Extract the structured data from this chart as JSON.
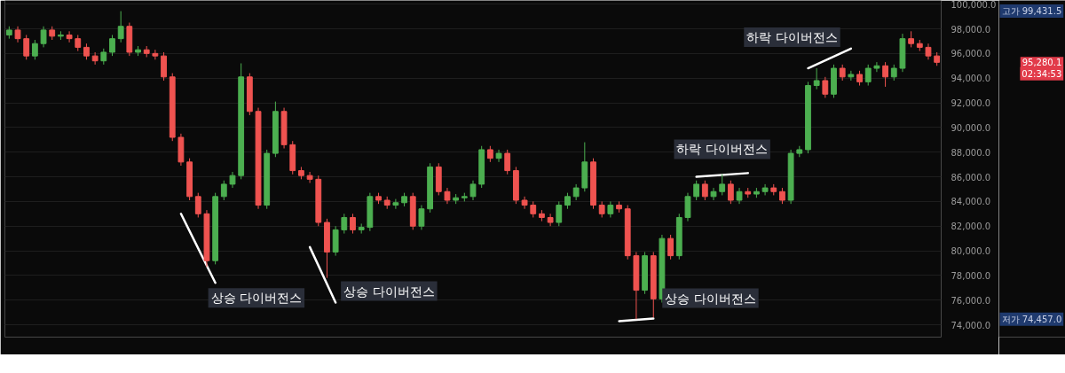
{
  "chart_data": {
    "type": "candlestick",
    "categories": [
      null,
      null,
      null,
      null,
      null,
      null,
      null,
      null,
      null,
      null,
      null,
      null,
      null,
      null,
      null,
      null,
      null,
      null,
      null,
      null,
      null,
      null,
      null,
      null,
      null,
      null,
      null,
      null,
      null,
      null,
      null,
      null,
      null,
      null,
      null,
      null,
      null,
      null,
      null,
      null,
      null,
      null,
      null,
      null,
      null,
      null,
      null,
      null,
      null,
      null,
      null,
      null,
      null,
      null,
      null,
      null,
      null,
      null,
      null,
      null,
      null,
      null,
      null,
      null,
      null,
      null,
      null,
      null,
      null,
      null,
      null,
      null,
      null,
      null,
      null,
      null,
      null,
      null,
      null,
      null,
      null,
      null,
      null,
      null,
      null,
      null,
      null,
      null,
      null,
      null,
      null,
      null,
      null,
      null,
      null,
      null,
      null,
      null,
      null,
      null,
      null,
      null,
      null,
      null,
      null,
      null,
      null,
      null,
      null
    ],
    "ohlc": [
      [
        97500,
        98200,
        97200,
        97900
      ],
      [
        97900,
        98200,
        96900,
        97200
      ],
      [
        97200,
        97500,
        95500,
        95800
      ],
      [
        95800,
        97100,
        95500,
        96800
      ],
      [
        96800,
        98200,
        96500,
        97900
      ],
      [
        97900,
        98200,
        97100,
        97400
      ],
      [
        97400,
        97800,
        97100,
        97500
      ],
      [
        97500,
        97800,
        96900,
        97200
      ],
      [
        97200,
        97500,
        96200,
        96500
      ],
      [
        96500,
        96800,
        95500,
        95800
      ],
      [
        95800,
        96100,
        95100,
        95400
      ],
      [
        95400,
        96400,
        95100,
        96100
      ],
      [
        96100,
        97500,
        95800,
        97200
      ],
      [
        97200,
        99431.5,
        96900,
        98200
      ],
      [
        98200,
        98500,
        95800,
        96100
      ],
      [
        96100,
        96600,
        95800,
        96300
      ],
      [
        96300,
        96600,
        95700,
        96000
      ],
      [
        96000,
        96300,
        95500,
        95800
      ],
      [
        95800,
        96100,
        93800,
        94100
      ],
      [
        94100,
        94400,
        88900,
        89200
      ],
      [
        89200,
        89500,
        86900,
        87200
      ],
      [
        87200,
        87500,
        84100,
        84400
      ],
      [
        84400,
        84700,
        82700,
        83000
      ],
      [
        83000,
        83300,
        78700,
        79200
      ],
      [
        79200,
        84700,
        78900,
        84400
      ],
      [
        84400,
        85700,
        84100,
        85400
      ],
      [
        85400,
        86400,
        85100,
        86100
      ],
      [
        86100,
        95200,
        85800,
        94100
      ],
      [
        94100,
        94400,
        91000,
        91300
      ],
      [
        91300,
        91600,
        83400,
        83700
      ],
      [
        83700,
        88200,
        83400,
        87900
      ],
      [
        87900,
        92100,
        87600,
        91300
      ],
      [
        91300,
        91600,
        88300,
        88600
      ],
      [
        88600,
        88900,
        86200,
        86500
      ],
      [
        86500,
        86800,
        85800,
        86100
      ],
      [
        86100,
        86400,
        85500,
        85800
      ],
      [
        85800,
        86100,
        82000,
        82300
      ],
      [
        82300,
        82600,
        77800,
        79900
      ],
      [
        79900,
        82000,
        79600,
        81700
      ],
      [
        81700,
        83000,
        81400,
        82700
      ],
      [
        82700,
        83000,
        81400,
        81700
      ],
      [
        81700,
        82200,
        81400,
        81900
      ],
      [
        81900,
        84700,
        81600,
        84400
      ],
      [
        84400,
        84700,
        83800,
        84100
      ],
      [
        84100,
        84400,
        83400,
        83700
      ],
      [
        83700,
        84200,
        83400,
        83900
      ],
      [
        83900,
        84700,
        83600,
        84400
      ],
      [
        84400,
        84700,
        81700,
        82000
      ],
      [
        82000,
        83700,
        81700,
        83400
      ],
      [
        83400,
        87100,
        83100,
        86800
      ],
      [
        86800,
        87100,
        84500,
        84800
      ],
      [
        84800,
        85100,
        83800,
        84100
      ],
      [
        84100,
        84600,
        83800,
        84300
      ],
      [
        84300,
        84700,
        84000,
        84400
      ],
      [
        84400,
        85700,
        84100,
        85400
      ],
      [
        85400,
        88500,
        85100,
        88200
      ],
      [
        88200,
        88500,
        87200,
        87500
      ],
      [
        87500,
        88200,
        87200,
        87900
      ],
      [
        87900,
        88200,
        86200,
        86500
      ],
      [
        86500,
        86800,
        83800,
        84100
      ],
      [
        84100,
        84400,
        83400,
        83700
      ],
      [
        83700,
        84000,
        82700,
        83000
      ],
      [
        83000,
        83300,
        82400,
        82700
      ],
      [
        82700,
        83000,
        82000,
        82300
      ],
      [
        82300,
        84000,
        82000,
        83700
      ],
      [
        83700,
        84700,
        83400,
        84400
      ],
      [
        84400,
        85400,
        84100,
        85100
      ],
      [
        85100,
        88800,
        84800,
        87200
      ],
      [
        87200,
        87500,
        83400,
        83700
      ],
      [
        83700,
        84000,
        82700,
        83000
      ],
      [
        83000,
        84000,
        82700,
        83700
      ],
      [
        83700,
        84000,
        83100,
        83400
      ],
      [
        83400,
        83700,
        79300,
        79600
      ],
      [
        79600,
        79900,
        74457,
        76800
      ],
      [
        76800,
        79900,
        76500,
        79600
      ],
      [
        79600,
        79900,
        74600,
        76100
      ],
      [
        76100,
        81300,
        75800,
        81000
      ],
      [
        81000,
        81300,
        79300,
        79600
      ],
      [
        79600,
        83000,
        79300,
        82700
      ],
      [
        82700,
        84700,
        82400,
        84400
      ],
      [
        84400,
        85700,
        84100,
        85400
      ],
      [
        85400,
        85700,
        84100,
        84400
      ],
      [
        84400,
        85100,
        84100,
        84800
      ],
      [
        84800,
        86200,
        84500,
        85400
      ],
      [
        85400,
        85700,
        83800,
        84100
      ],
      [
        84100,
        85100,
        83800,
        84800
      ],
      [
        84800,
        85100,
        84300,
        84600
      ],
      [
        84600,
        85100,
        84300,
        84800
      ],
      [
        84800,
        85400,
        84500,
        85100
      ],
      [
        85100,
        85400,
        84500,
        84800
      ],
      [
        84800,
        85100,
        83800,
        84100
      ],
      [
        84100,
        88200,
        83800,
        87900
      ],
      [
        87900,
        88500,
        87600,
        88200
      ],
      [
        88200,
        93700,
        87900,
        93400
      ],
      [
        93400,
        94800,
        93100,
        93800
      ],
      [
        93800,
        94100,
        92400,
        92700
      ],
      [
        92700,
        95100,
        92400,
        94800
      ],
      [
        94800,
        95100,
        93800,
        94100
      ],
      [
        94100,
        94600,
        93800,
        94300
      ],
      [
        94300,
        94600,
        93400,
        93700
      ],
      [
        93700,
        95100,
        93400,
        94800
      ],
      [
        94800,
        95300,
        94500,
        95000
      ],
      [
        95000,
        95300,
        93300,
        94100
      ],
      [
        94100,
        95100,
        93800,
        94800
      ],
      [
        94800,
        97600,
        94500,
        97200
      ],
      [
        97200,
        97800,
        96500,
        96800
      ],
      [
        96800,
        97100,
        96200,
        96500
      ],
      [
        96500,
        96800,
        95500,
        95800
      ],
      [
        95800,
        96100,
        95000,
        95280.1
      ]
    ],
    "colors": [
      "#4caf50",
      "#ef5350",
      "#ef5350",
      "#4caf50",
      "#4caf50",
      "#ef5350",
      "#4caf50",
      "#ef5350",
      "#ef5350",
      "#ef5350",
      "#ef5350",
      "#4caf50",
      "#4caf50",
      "#4caf50",
      "#ef5350",
      "#4caf50",
      "#ef5350",
      "#ef5350",
      "#ef5350",
      "#ef5350",
      "#ef5350",
      "#ef5350",
      "#ef5350",
      "#ef5350",
      "#4caf50",
      "#4caf50",
      "#4caf50",
      "#4caf50",
      "#ef5350",
      "#ef5350",
      "#4caf50",
      "#4caf50",
      "#ef5350",
      "#ef5350",
      "#ef5350",
      "#ef5350",
      "#ef5350",
      "#ef5350",
      "#4caf50",
      "#4caf50",
      "#ef5350",
      "#4caf50",
      "#4caf50",
      "#ef5350",
      "#ef5350",
      "#4caf50",
      "#4caf50",
      "#ef5350",
      "#4caf50",
      "#4caf50",
      "#ef5350",
      "#ef5350",
      "#4caf50",
      "#4caf50",
      "#4caf50",
      "#4caf50",
      "#ef5350",
      "#4caf50",
      "#ef5350",
      "#ef5350",
      "#ef5350",
      "#ef5350",
      "#ef5350",
      "#ef5350",
      "#4caf50",
      "#4caf50",
      "#4caf50",
      "#4caf50",
      "#ef5350",
      "#ef5350",
      "#4caf50",
      "#ef5350",
      "#ef5350",
      "#ef5350",
      "#4caf50",
      "#ef5350",
      "#4caf50",
      "#ef5350",
      "#4caf50",
      "#4caf50",
      "#4caf50",
      "#ef5350",
      "#4caf50",
      "#4caf50",
      "#ef5350",
      "#4caf50",
      "#ef5350",
      "#4caf50",
      "#4caf50",
      "#ef5350",
      "#ef5350",
      "#4caf50",
      "#4caf50",
      "#4caf50",
      "#4caf50",
      "#ef5350",
      "#4caf50",
      "#ef5350",
      "#4caf50",
      "#ef5350",
      "#4caf50",
      "#4caf50",
      "#ef5350",
      "#4caf50",
      "#4caf50",
      "#ef5350",
      "#ef5350",
      "#ef5350",
      "#ef5350"
    ],
    "series": [
      {
        "type": "line",
        "name": "상승 다이버전스",
        "color": "#ffffff",
        "values": [
          null,
          null,
          null,
          null,
          null,
          null,
          null,
          null,
          null,
          null,
          null,
          null,
          null,
          null,
          null,
          null,
          null,
          null,
          null,
          null,
          83000,
          null,
          null,
          null,
          77400,
          null,
          null,
          null,
          null,
          null,
          null,
          null,
          null,
          null,
          null,
          null,
          null,
          null,
          null,
          null,
          null,
          null,
          null,
          null,
          null,
          null,
          null,
          null,
          null,
          null,
          null,
          null,
          null,
          null,
          null,
          null,
          null,
          null,
          null,
          null,
          null,
          null,
          null,
          null,
          null,
          null,
          null,
          null,
          null,
          null,
          null,
          null,
          null,
          null,
          null,
          null,
          null,
          null,
          null,
          null,
          null,
          null,
          null,
          null,
          null,
          null,
          null,
          null,
          null,
          null,
          null,
          null,
          null,
          null,
          null,
          null,
          null,
          null,
          null,
          null,
          null,
          null,
          null,
          null,
          null,
          null,
          null,
          null,
          null
        ]
      },
      {
        "type": "line",
        "name": "상승 다이버전스",
        "color": "#ffffff",
        "values": [
          null,
          null,
          null,
          null,
          null,
          null,
          null,
          null,
          null,
          null,
          null,
          null,
          null,
          null,
          null,
          null,
          null,
          null,
          null,
          null,
          null,
          null,
          null,
          null,
          null,
          null,
          null,
          null,
          null,
          null,
          null,
          null,
          null,
          null,
          null,
          80300,
          null,
          null,
          75800,
          null,
          null,
          null,
          null,
          null,
          null,
          null,
          null,
          null,
          null,
          null,
          null,
          null,
          null,
          null,
          null,
          null,
          null,
          null,
          null,
          null,
          null,
          null,
          null,
          null,
          null,
          null,
          null,
          null,
          null,
          null,
          null,
          null,
          null,
          null,
          null,
          null,
          null,
          null,
          null,
          null,
          null,
          null,
          null,
          null,
          null,
          null,
          null,
          null,
          null,
          null,
          null,
          null,
          null,
          null,
          null,
          null,
          null,
          null,
          null,
          null,
          null,
          null,
          null,
          null,
          null,
          null,
          null,
          null,
          null
        ]
      },
      {
        "type": "line",
        "name": "상승 다이버전스",
        "color": "#ffffff",
        "values": [
          null,
          null,
          null,
          null,
          null,
          null,
          null,
          null,
          null,
          null,
          null,
          null,
          null,
          null,
          null,
          null,
          null,
          null,
          null,
          null,
          null,
          null,
          null,
          null,
          null,
          null,
          null,
          null,
          null,
          null,
          null,
          null,
          null,
          null,
          null,
          null,
          null,
          null,
          null,
          null,
          null,
          null,
          null,
          null,
          null,
          null,
          null,
          null,
          null,
          null,
          null,
          null,
          null,
          null,
          null,
          null,
          null,
          null,
          null,
          null,
          null,
          null,
          null,
          null,
          null,
          null,
          null,
          null,
          null,
          null,
          null,
          74300,
          null,
          null,
          null,
          74500,
          null,
          null,
          null,
          null,
          null,
          null,
          null,
          null,
          null,
          null,
          null,
          null,
          null,
          null,
          null,
          null,
          null,
          null,
          null,
          null,
          null,
          null,
          null,
          null,
          null,
          null,
          null,
          null,
          null,
          null,
          null,
          null,
          null
        ]
      },
      {
        "type": "line",
        "name": "하락 다이버전스",
        "color": "#ffffff",
        "values": [
          null,
          null,
          null,
          null,
          null,
          null,
          null,
          null,
          null,
          null,
          null,
          null,
          null,
          null,
          null,
          null,
          null,
          null,
          null,
          null,
          null,
          null,
          null,
          null,
          null,
          null,
          null,
          null,
          null,
          null,
          null,
          null,
          null,
          null,
          null,
          null,
          null,
          null,
          null,
          null,
          null,
          null,
          null,
          null,
          null,
          null,
          null,
          null,
          null,
          null,
          null,
          null,
          null,
          null,
          null,
          null,
          null,
          null,
          null,
          null,
          null,
          null,
          null,
          null,
          null,
          null,
          null,
          null,
          null,
          null,
          null,
          null,
          null,
          null,
          null,
          null,
          null,
          null,
          null,
          null,
          86000,
          null,
          null,
          null,
          null,
          null,
          86300,
          null,
          null,
          null,
          null,
          null,
          null,
          null,
          null,
          null,
          null,
          null,
          null,
          null,
          null,
          null,
          null,
          null,
          null,
          null,
          null,
          null,
          null
        ]
      },
      {
        "type": "line",
        "name": "하락 다이버전스",
        "color": "#ffffff",
        "values": [
          null,
          null,
          null,
          null,
          null,
          null,
          null,
          null,
          null,
          null,
          null,
          null,
          null,
          null,
          null,
          null,
          null,
          null,
          null,
          null,
          null,
          null,
          null,
          null,
          null,
          null,
          null,
          null,
          null,
          null,
          null,
          null,
          null,
          null,
          null,
          null,
          null,
          null,
          null,
          null,
          null,
          null,
          null,
          null,
          null,
          null,
          null,
          null,
          null,
          null,
          null,
          null,
          null,
          null,
          null,
          null,
          null,
          null,
          null,
          null,
          null,
          null,
          null,
          null,
          null,
          null,
          null,
          null,
          null,
          null,
          null,
          null,
          null,
          null,
          null,
          null,
          null,
          null,
          null,
          null,
          null,
          null,
          null,
          null,
          null,
          null,
          null,
          null,
          null,
          null,
          null,
          null,
          null,
          94800,
          null,
          null,
          null,
          null,
          96400,
          null,
          null,
          null,
          null,
          null,
          null,
          null,
          null,
          null,
          null
        ]
      }
    ],
    "ylim": [
      73000,
      100300
    ],
    "yticks": [
      {
        "value": 74000,
        "label": "74,000.0"
      },
      {
        "value": 76000,
        "label": "76,000.0"
      },
      {
        "value": 78000,
        "label": "78,000.0"
      },
      {
        "value": 80000,
        "label": "80,000.0"
      },
      {
        "value": 82000,
        "label": "82,000.0"
      },
      {
        "value": 84000,
        "label": "84,000.0"
      },
      {
        "value": 86000,
        "label": "86,000.0"
      },
      {
        "value": 88000,
        "label": "88,000.0"
      },
      {
        "value": 90000,
        "label": "90,000.0"
      },
      {
        "value": 92000,
        "label": "92,000.0"
      },
      {
        "value": 94000,
        "label": "94,000.0"
      },
      {
        "value": 96000,
        "label": "96,000.0"
      },
      {
        "value": 98000,
        "label": "98,000.0"
      },
      {
        "value": 100000,
        "label": "100,000.0"
      }
    ],
    "annotations": [
      "고가 99,431.5",
      "저가 74,457.0",
      "95,280.1",
      "02:34:53"
    ],
    "grid": "y",
    "tick_labels": "y"
  }
}
